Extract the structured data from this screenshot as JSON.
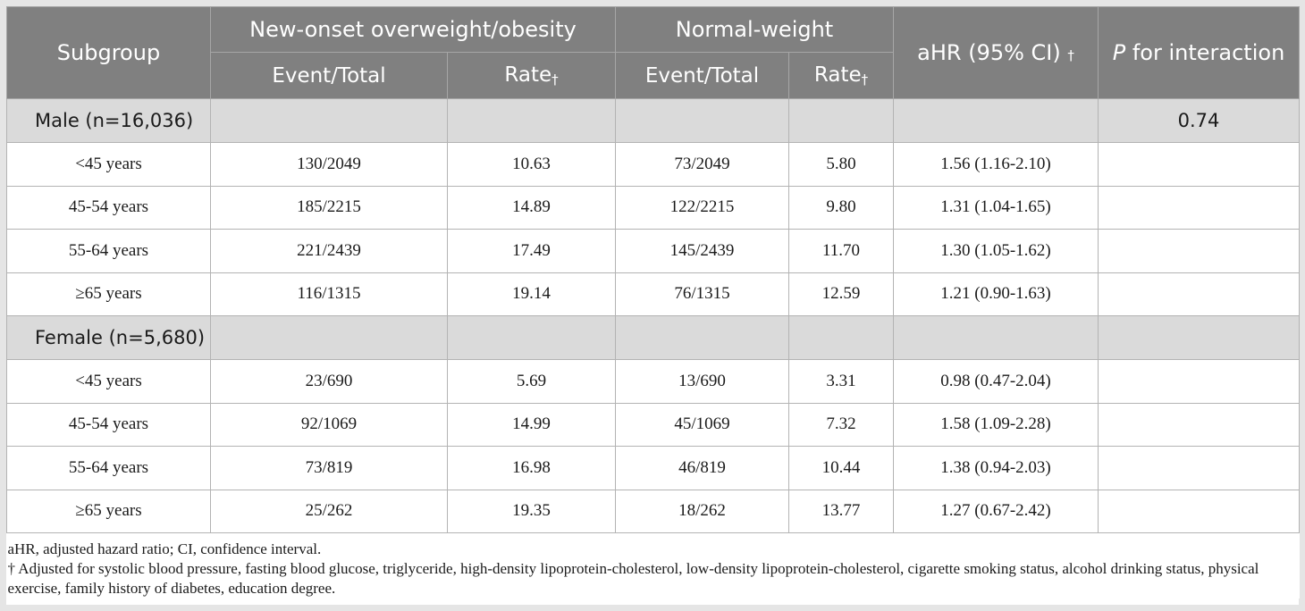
{
  "header": {
    "subgroup": "Subgroup",
    "new_onset": "New-onset overweight/obesity",
    "normal_weight": "Normal-weight",
    "ahr": "aHR (95% CI)",
    "dagger": "†",
    "p_italic": "P",
    "p_rest": " for interaction",
    "event_total": "Event/Total",
    "rate": "Rate"
  },
  "groups": [
    {
      "label": "Male (n=16,036)",
      "p_interaction": "0.74",
      "rows": [
        {
          "age": "<45 years",
          "ow_event": "130/2049",
          "ow_rate": "10.63",
          "nw_event": "73/2049",
          "nw_rate": "5.80",
          "ahr": "1.56 (1.16-2.10)"
        },
        {
          "age": "45-54 years",
          "ow_event": "185/2215",
          "ow_rate": "14.89",
          "nw_event": "122/2215",
          "nw_rate": "9.80",
          "ahr": "1.31 (1.04-1.65)"
        },
        {
          "age": "55-64 years",
          "ow_event": "221/2439",
          "ow_rate": "17.49",
          "nw_event": "145/2439",
          "nw_rate": "11.70",
          "ahr": "1.30 (1.05-1.62)"
        },
        {
          "age": "≥65 years",
          "ow_event": "116/1315",
          "ow_rate": "19.14",
          "nw_event": "76/1315",
          "nw_rate": "12.59",
          "ahr": "1.21 (0.90-1.63)"
        }
      ]
    },
    {
      "label": "Female (n=5,680)",
      "p_interaction": "",
      "rows": [
        {
          "age": "<45 years",
          "ow_event": "23/690",
          "ow_rate": "5.69",
          "nw_event": "13/690",
          "nw_rate": "3.31",
          "ahr": "0.98 (0.47-2.04)"
        },
        {
          "age": "45-54 years",
          "ow_event": "92/1069",
          "ow_rate": "14.99",
          "nw_event": "45/1069",
          "nw_rate": "7.32",
          "ahr": "1.58 (1.09-2.28)"
        },
        {
          "age": "55-64 years",
          "ow_event": "73/819",
          "ow_rate": "16.98",
          "nw_event": "46/819",
          "nw_rate": "10.44",
          "ahr": "1.38 (0.94-2.03)"
        },
        {
          "age": "≥65 years",
          "ow_event": "25/262",
          "ow_rate": "19.35",
          "nw_event": "18/262",
          "nw_rate": "13.77",
          "ahr": "1.27 (0.67-2.42)"
        }
      ]
    }
  ],
  "footnotes": {
    "abbrev": "aHR, adjusted hazard ratio; CI, confidence interval.",
    "adjusted": "† Adjusted for systolic blood pressure, fasting blood glucose, triglyceride, high-density lipoprotein-cholesterol, low-density lipoprotein-cholesterol, cigarette smoking status, alcohol drinking status, physical exercise, family history of diabetes, education degree."
  }
}
